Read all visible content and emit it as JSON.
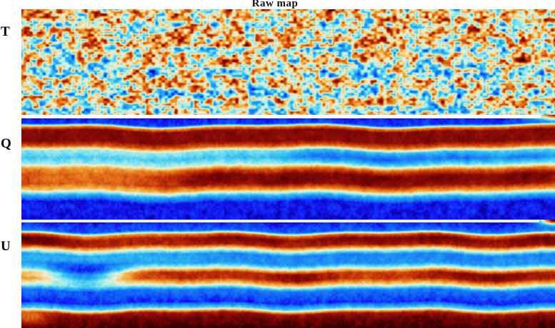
{
  "figure": {
    "title": "Raw map",
    "row_labels": [
      "T",
      "Q",
      "U"
    ]
  },
  "chart_data": {
    "type": "heatmap",
    "title": "Raw map",
    "axes": {
      "x_ticks": [],
      "y_ticks": [],
      "colorbar": false,
      "grid": false
    },
    "colormap": [
      {
        "t": 0.0,
        "c": "#000080"
      },
      {
        "t": 0.055,
        "c": "#1414f0"
      },
      {
        "t": 0.13,
        "c": "#1060f8"
      },
      {
        "t": 0.3,
        "c": "#30c0f0"
      },
      {
        "t": 0.4,
        "c": "#90e8f0"
      },
      {
        "t": 0.46,
        "c": "#c8f0d8"
      },
      {
        "t": 0.5,
        "c": "#f2eed8"
      },
      {
        "t": 0.57,
        "c": "#f0d080"
      },
      {
        "t": 0.645,
        "c": "#f0a030"
      },
      {
        "t": 0.72,
        "c": "#e06818"
      },
      {
        "t": 0.8,
        "c": "#c03008"
      },
      {
        "t": 0.88,
        "c": "#8e0d08"
      },
      {
        "t": 0.95,
        "c": "#6a0402"
      },
      {
        "t": 1.0,
        "c": "#320000"
      }
    ],
    "panels": [
      {
        "label": "T",
        "kind": "noise",
        "description": "Temperature map: fine-grained speckle of orange and cyan fluctuations on a cream background with faint horizontal scan striping",
        "seed": 42,
        "base": 0.5,
        "amp": 1.15,
        "aniso_y": 1.25,
        "octaves": [
          {
            "scale": 4.5,
            "w": 0.42
          },
          {
            "scale": 9,
            "w": 0.36
          },
          {
            "scale": 18,
            "w": 0.22
          }
        ],
        "stripe": {
          "scale": 7,
          "amp": 0.1
        }
      },
      {
        "label": "Q",
        "kind": "bands",
        "description": "Stokes Q map: blue top, thick dark-red band, cyan band with blue dips on the right, orange-red band with dark blobs, blue bottom",
        "seed": 11,
        "noise_amp": 0.11,
        "wiggle": {
          "a": [
            0.014,
            0.008
          ],
          "f": [
            2.2,
            4.7
          ],
          "p": [
            0.15,
            0.55
          ]
        },
        "profile": [
          [
            0.0,
            -0.97
          ],
          [
            0.02,
            -0.88
          ],
          [
            0.085,
            -0.82
          ],
          [
            0.115,
            0.3
          ],
          [
            0.15,
            0.8
          ],
          [
            0.25,
            0.8
          ],
          [
            0.3,
            0.45
          ],
          [
            0.345,
            -0.25
          ],
          [
            0.41,
            -0.4
          ],
          [
            0.47,
            -0.15
          ],
          [
            0.52,
            0.4
          ],
          [
            0.575,
            0.62
          ],
          [
            0.66,
            0.6
          ],
          [
            0.715,
            0.25
          ],
          [
            0.77,
            -0.45
          ],
          [
            0.83,
            -0.88
          ],
          [
            1.0,
            -0.9
          ]
        ],
        "mods": [
          {
            "x": 0.36,
            "y": 0.6,
            "sx": 0.05,
            "sy": 0.06,
            "dv": 0.26
          },
          {
            "x": 0.5,
            "y": 0.62,
            "sx": 0.05,
            "sy": 0.06,
            "dv": 0.28
          },
          {
            "x": 0.655,
            "y": 0.6,
            "sx": 0.06,
            "sy": 0.06,
            "dv": 0.28
          },
          {
            "x": 0.8,
            "y": 0.6,
            "sx": 0.05,
            "sy": 0.055,
            "dv": 0.24
          },
          {
            "x": 0.945,
            "y": 0.6,
            "sx": 0.045,
            "sy": 0.06,
            "dv": 0.28
          },
          {
            "x": 0.12,
            "y": 0.6,
            "sx": 0.1,
            "sy": 0.07,
            "dv": -0.2
          },
          {
            "x": 0.565,
            "y": 0.4,
            "sx": 0.045,
            "sy": 0.05,
            "dv": -0.3
          },
          {
            "x": 0.685,
            "y": 0.41,
            "sx": 0.05,
            "sy": 0.05,
            "dv": -0.32
          },
          {
            "x": 0.82,
            "y": 0.4,
            "sx": 0.045,
            "sy": 0.05,
            "dv": -0.28
          },
          {
            "x": 0.95,
            "y": 0.42,
            "sx": 0.04,
            "sy": 0.05,
            "dv": -0.24
          },
          {
            "x": 0.17,
            "y": 0.37,
            "sx": 0.12,
            "sy": 0.045,
            "dv": 0.1
          },
          {
            "x": 1.0,
            "y": 0.0,
            "sx": 0.03,
            "sy": 0.045,
            "dv": 1.7
          }
        ]
      },
      {
        "label": "U",
        "kind": "bands",
        "description": "Stokes U map: blue top, red band with dark blobs, blue/cyan band, broken orange band with a dark-red blob at right, blue band, dark maroon bottom band",
        "seed": 23,
        "noise_amp": 0.11,
        "wiggle": {
          "a": [
            0.012,
            0.007
          ],
          "f": [
            2.6,
            5.3
          ],
          "p": [
            0.4,
            0.1
          ]
        },
        "profile": [
          [
            0.0,
            -0.95
          ],
          [
            0.03,
            -0.86
          ],
          [
            0.1,
            -0.76
          ],
          [
            0.135,
            0.3
          ],
          [
            0.175,
            0.66
          ],
          [
            0.23,
            0.64
          ],
          [
            0.27,
            0.05
          ],
          [
            0.32,
            -0.62
          ],
          [
            0.4,
            -0.58
          ],
          [
            0.445,
            -0.12
          ],
          [
            0.49,
            0.52
          ],
          [
            0.545,
            0.55
          ],
          [
            0.6,
            0.08
          ],
          [
            0.65,
            -0.66
          ],
          [
            0.76,
            -0.86
          ],
          [
            0.815,
            -0.3
          ],
          [
            0.86,
            0.7
          ],
          [
            0.91,
            0.88
          ],
          [
            0.97,
            0.95
          ],
          [
            1.0,
            1.0
          ]
        ],
        "mods": [
          {
            "x": 0.02,
            "y": 0.18,
            "sx": 0.045,
            "sy": 0.05,
            "dv": 0.3
          },
          {
            "x": 0.42,
            "y": 0.165,
            "sx": 0.07,
            "sy": 0.04,
            "dv": 0.22
          },
          {
            "x": 0.62,
            "y": 0.17,
            "sx": 0.05,
            "sy": 0.04,
            "dv": 0.2
          },
          {
            "x": 0.78,
            "y": 0.16,
            "sx": 0.06,
            "sy": 0.045,
            "dv": 0.26
          },
          {
            "x": 0.97,
            "y": 0.15,
            "sx": 0.045,
            "sy": 0.055,
            "dv": 0.28
          },
          {
            "x": 0.12,
            "y": 0.36,
            "sx": 0.14,
            "sy": 0.05,
            "dv": 0.22
          },
          {
            "x": 0.115,
            "y": 0.5,
            "sx": 0.055,
            "sy": 0.07,
            "dv": -1.1
          },
          {
            "x": 0.005,
            "y": 0.5,
            "sx": 0.022,
            "sy": 0.05,
            "dv": -0.22
          },
          {
            "x": 0.3,
            "y": 0.5,
            "sx": 0.08,
            "sy": 0.04,
            "dv": 0.12
          },
          {
            "x": 0.52,
            "y": 0.51,
            "sx": 0.05,
            "sy": 0.05,
            "dv": 0.26
          },
          {
            "x": 0.88,
            "y": 0.5,
            "sx": 0.09,
            "sy": 0.05,
            "dv": 0.3
          },
          {
            "x": 0.012,
            "y": 0.915,
            "sx": 0.028,
            "sy": 0.05,
            "dv": -0.4
          },
          {
            "x": 1.0,
            "y": 0.0,
            "sx": 0.02,
            "sy": 0.03,
            "dv": 1.9
          }
        ]
      }
    ]
  }
}
